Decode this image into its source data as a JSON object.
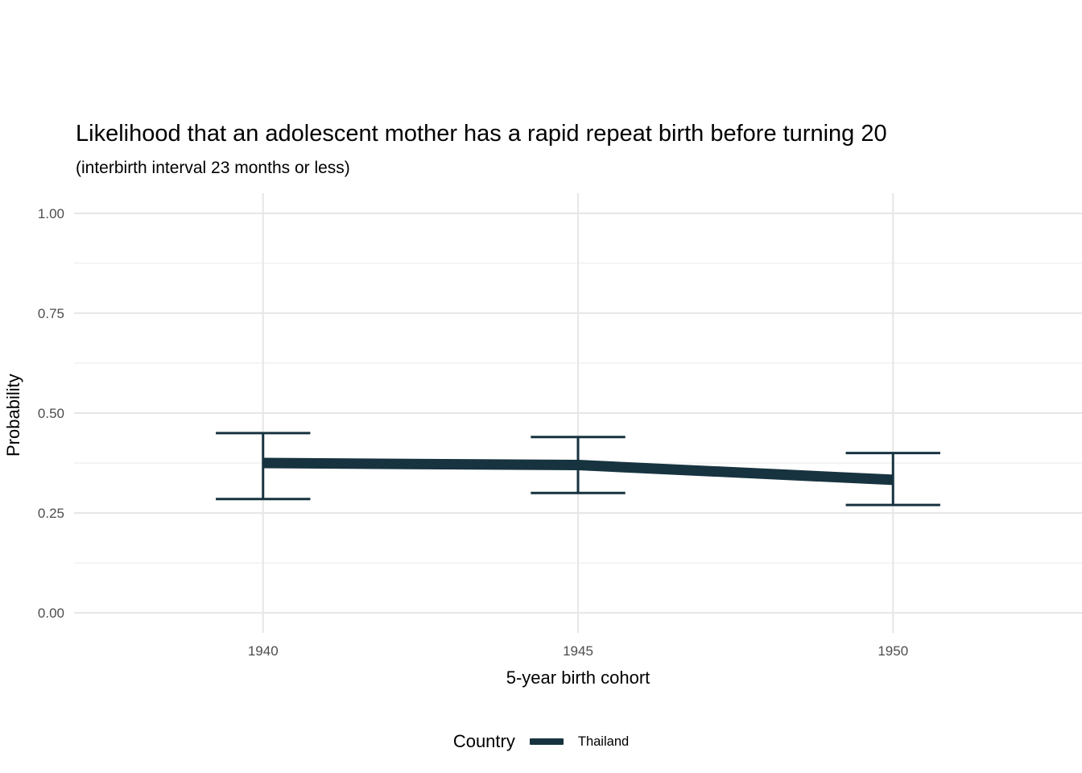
{
  "page": {
    "background": "#ffffff"
  },
  "chart_data": {
    "type": "line",
    "title": "Likelihood that an adolescent mother has a rapid repeat birth before turning 20",
    "subtitle": "(interbirth interval 23 months or less)",
    "xlabel": "5-year birth cohort",
    "ylabel": "Probability",
    "legend": {
      "title": "Country",
      "position": "bottom",
      "entries": [
        "Thailand"
      ]
    },
    "categories": [
      1940,
      1945,
      1950
    ],
    "series": [
      {
        "name": "Thailand",
        "color": "#17333f",
        "values": [
          0.375,
          0.37,
          0.333
        ],
        "ci_lower": [
          0.285,
          0.3,
          0.27
        ],
        "ci_upper": [
          0.45,
          0.44,
          0.4
        ]
      }
    ],
    "error_bars": {
      "show": true,
      "cap_half_width_x": 0.75
    },
    "axes": {
      "x_ticks": [
        1940,
        1945,
        1950
      ],
      "x_tick_labels": [
        "1940",
        "1945",
        "1950"
      ],
      "x_range": [
        1937,
        1953
      ],
      "y_ticks": [
        0,
        0.25,
        0.5,
        0.75,
        1.0
      ],
      "y_tick_labels": [
        "0.00",
        "0.25",
        "0.50",
        "0.75",
        "1.00"
      ],
      "y_minor_ticks": [
        0.125,
        0.375,
        0.625,
        0.875
      ],
      "y_range": [
        -0.05,
        1.05
      ],
      "ylim": [
        0,
        1
      ]
    },
    "grid": {
      "major_color": "#e6e6e6",
      "minor_color": "#efefef",
      "show_x_minor": false
    },
    "styles": {
      "line_width": 13,
      "errorbar_width": 3,
      "tick_label_color": "#4d4d4d",
      "text_color": "#000000",
      "background": "#ffffff"
    }
  }
}
